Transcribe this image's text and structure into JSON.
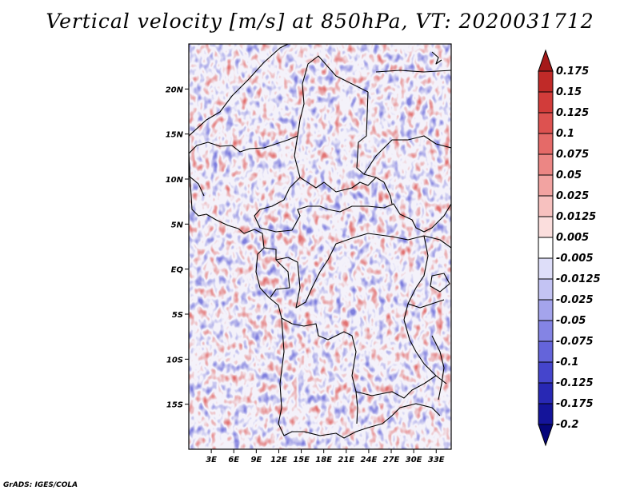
{
  "title": "Vertical velocity [m/s] at 850hPa, VT: 2020031712",
  "credit": "GrADS: IGES/COLA",
  "map": {
    "variable": "Vertical velocity",
    "units": "m/s",
    "level": "850hPa",
    "valid_time": "2020031712",
    "lon_range": [
      0,
      35
    ],
    "lat_range": [
      -20,
      25
    ],
    "lon_ticks": [
      {
        "value": 3,
        "label": "3E"
      },
      {
        "value": 6,
        "label": "6E"
      },
      {
        "value": 9,
        "label": "9E"
      },
      {
        "value": 12,
        "label": "12E"
      },
      {
        "value": 15,
        "label": "15E"
      },
      {
        "value": 18,
        "label": "18E"
      },
      {
        "value": 21,
        "label": "21E"
      },
      {
        "value": 24,
        "label": "24E"
      },
      {
        "value": 27,
        "label": "27E"
      },
      {
        "value": 30,
        "label": "30E"
      },
      {
        "value": 33,
        "label": "33E"
      }
    ],
    "lat_ticks": [
      {
        "value": 20,
        "label": "20N"
      },
      {
        "value": 15,
        "label": "15N"
      },
      {
        "value": 10,
        "label": "10N"
      },
      {
        "value": 5,
        "label": "5N"
      },
      {
        "value": 0,
        "label": "EQ"
      },
      {
        "value": -5,
        "label": "5S"
      },
      {
        "value": -10,
        "label": "10S"
      },
      {
        "value": -15,
        "label": "15S"
      }
    ]
  },
  "colorbar": {
    "labels": [
      "0.175",
      "0.15",
      "0.125",
      "0.1",
      "0.075",
      "0.05",
      "0.025",
      "0.0125",
      "0.005",
      "-0.005",
      "-0.0125",
      "-0.025",
      "-0.05",
      "-0.075",
      "-0.1",
      "-0.125",
      "-0.175",
      "-0.2"
    ],
    "colors": [
      "#a51a1a",
      "#c02a28",
      "#d23c3a",
      "#dd5250",
      "#e56a68",
      "#ec8684",
      "#f2a3a1",
      "#f7c1bf",
      "#fbdedd",
      "#ffffff",
      "#dedef9",
      "#c3c3f3",
      "#a4a4ec",
      "#8484e4",
      "#6464da",
      "#4545cc",
      "#2828b4",
      "#14149a",
      "#06067a"
    ]
  }
}
